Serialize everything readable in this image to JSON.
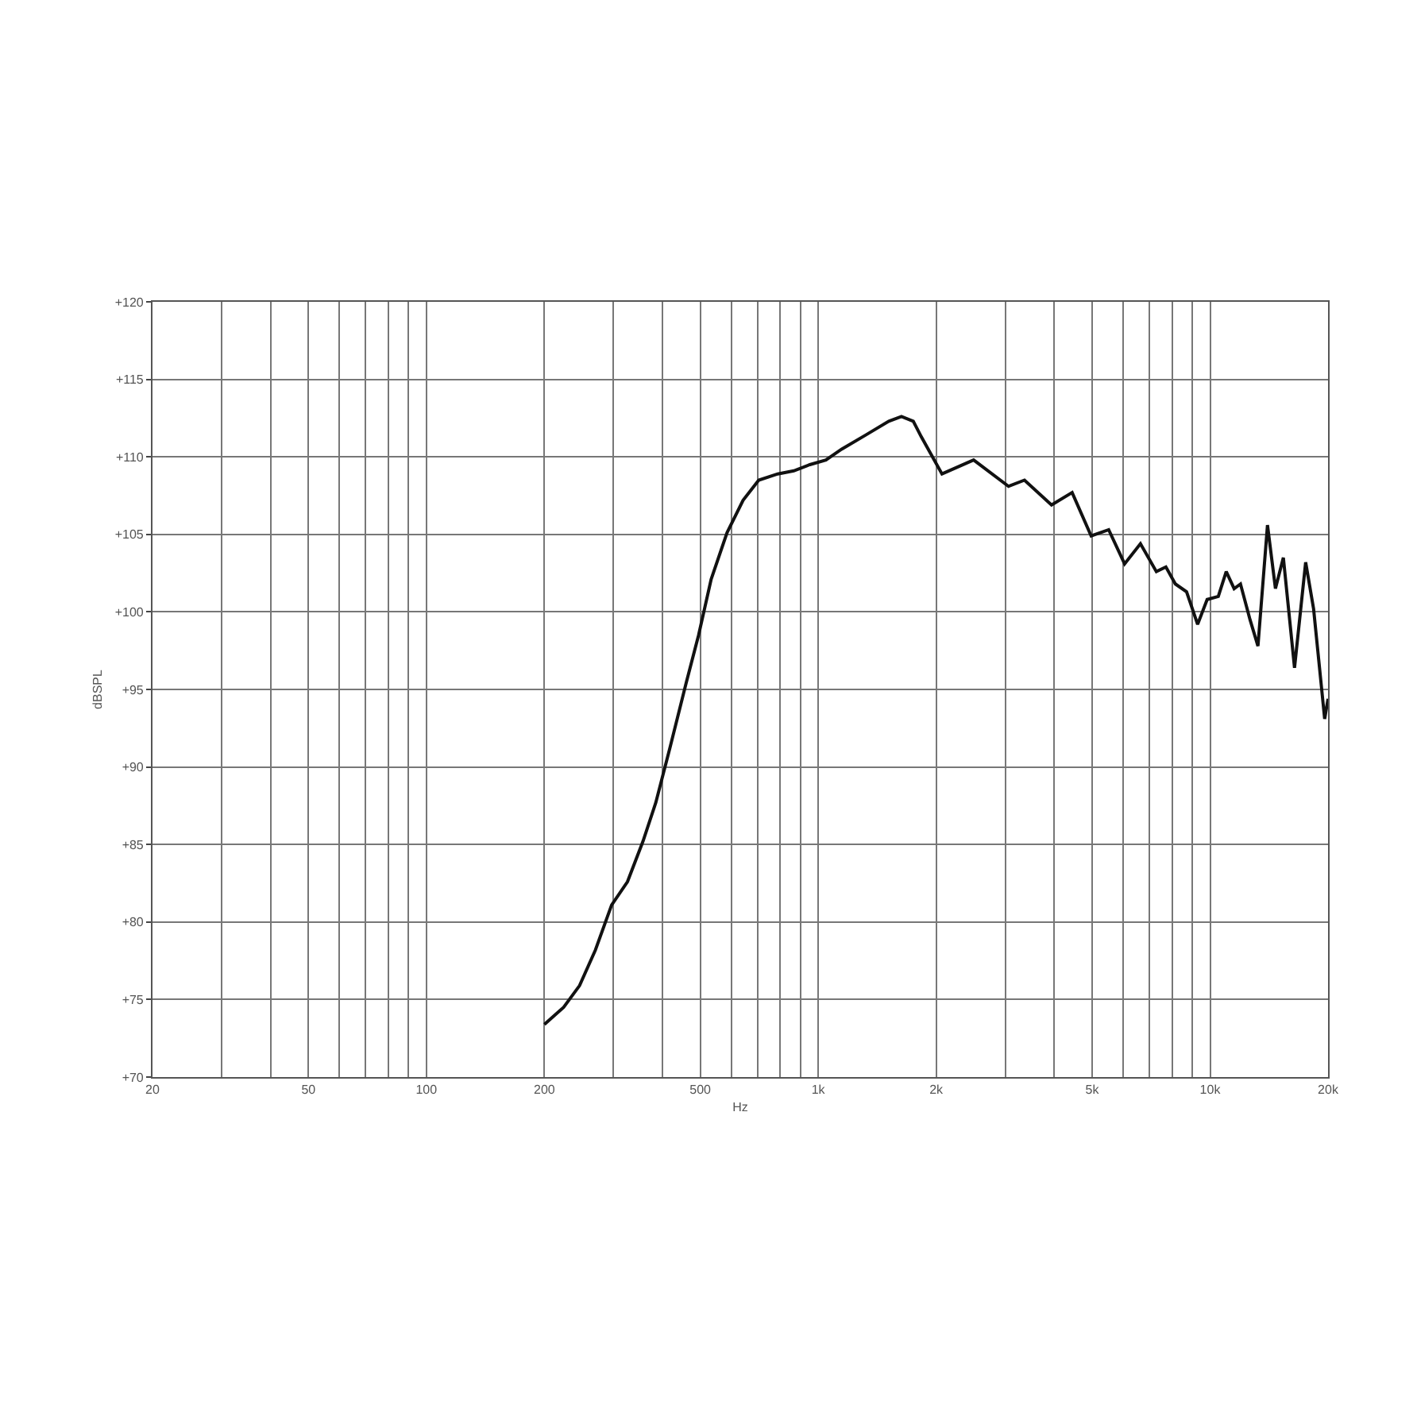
{
  "chart_data": {
    "type": "line",
    "xlabel": "Hz",
    "ylabel": "dBSPL",
    "log": "x",
    "grid": true,
    "marker": "none",
    "line_style": "solid",
    "xlim": [
      20,
      20000
    ],
    "ylim": [
      70,
      120
    ],
    "xticks": [
      20,
      {
        "value": 30,
        "label": null
      },
      {
        "value": 40,
        "label": null
      },
      50,
      {
        "value": 60,
        "label": null
      },
      {
        "value": 70,
        "label": null
      },
      {
        "value": 80,
        "label": null
      },
      {
        "value": 90,
        "label": null
      },
      100,
      200,
      {
        "value": 300,
        "label": null
      },
      {
        "value": 400,
        "label": null
      },
      500,
      {
        "value": 600,
        "label": null
      },
      {
        "value": 700,
        "label": null
      },
      {
        "value": 800,
        "label": null
      },
      {
        "value": 900,
        "label": null
      },
      {
        "value": 1000,
        "label": "1k"
      },
      {
        "value": 2000,
        "label": "2k"
      },
      {
        "value": 3000,
        "label": null
      },
      {
        "value": 4000,
        "label": null
      },
      {
        "value": 5000,
        "label": "5k"
      },
      {
        "value": 6000,
        "label": null
      },
      {
        "value": 7000,
        "label": null
      },
      {
        "value": 8000,
        "label": null
      },
      {
        "value": 9000,
        "label": null
      },
      {
        "value": 10000,
        "label": "10k"
      },
      {
        "value": 20000,
        "label": "20k"
      }
    ],
    "yticks": [
      {
        "value": 70,
        "label": "+70"
      },
      {
        "value": 75,
        "label": "+75"
      },
      {
        "value": 80,
        "label": "+80"
      },
      {
        "value": 85,
        "label": "+85"
      },
      {
        "value": 90,
        "label": "+90"
      },
      {
        "value": 95,
        "label": "+95"
      },
      {
        "value": 100,
        "label": "+100"
      },
      {
        "value": 105,
        "label": "+105"
      },
      {
        "value": 110,
        "label": "+110"
      },
      {
        "value": 115,
        "label": "+115"
      },
      {
        "value": 120,
        "label": "+120"
      }
    ],
    "series": [
      {
        "color": "#111111",
        "x": [
          200,
          224,
          246,
          270,
          297,
          326,
          357,
          385,
          419,
          460,
          495,
          533,
          585,
          643,
          705,
          788,
          866,
          952,
          1046,
          1148,
          1320,
          1514,
          1631,
          1748,
          1832,
          2069,
          2492,
          3059,
          3360,
          3939,
          4446,
          4972,
          5511,
          6051,
          6642,
          7293,
          7713,
          8156,
          8709,
          9295,
          9830,
          10495,
          10995,
          11520,
          11957,
          12645,
          13249,
          14012,
          14682,
          15381,
          16424,
          17535,
          18372,
          19609,
          20000
        ],
        "values": [
          73.4,
          74.5,
          75.9,
          78.2,
          81.1,
          82.6,
          85.2,
          87.7,
          91.3,
          95.4,
          98.5,
          102.1,
          105.1,
          107.2,
          108.5,
          108.9,
          109.1,
          109.5,
          109.8,
          110.5,
          111.4,
          112.3,
          112.6,
          112.3,
          111.3,
          108.9,
          109.8,
          108.1,
          108.5,
          106.9,
          107.7,
          104.9,
          105.3,
          103.1,
          104.4,
          102.6,
          102.9,
          101.8,
          101.3,
          99.2,
          100.8,
          101.0,
          102.6,
          101.5,
          101.8,
          99.5,
          97.8,
          105.6,
          101.5,
          103.5,
          96.4,
          103.2,
          100.2,
          93.1,
          94.4
        ]
      }
    ]
  }
}
